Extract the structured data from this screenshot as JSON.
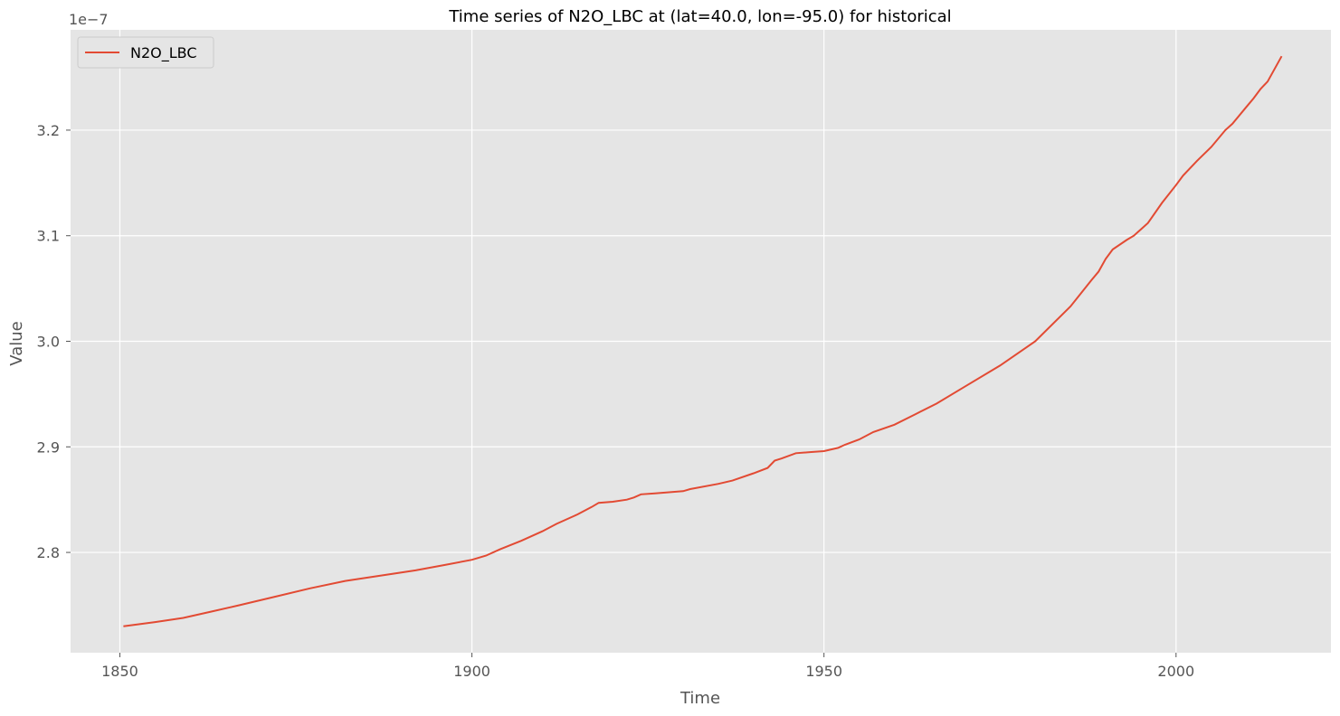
{
  "chart_data": {
    "type": "line",
    "title": "Time series of N2O_LBC at (lat=40.0, lon=-95.0) for historical",
    "xlabel": "Time",
    "ylabel": "Value",
    "y_offset_label": "1e−7",
    "xlim": [
      1843,
      2022
    ],
    "ylim": [
      2.705,
      3.295
    ],
    "x_ticks": [
      1850,
      1900,
      1950,
      2000
    ],
    "x_tick_labels": [
      "1850",
      "1900",
      "1950",
      "2000"
    ],
    "y_ticks": [
      2.8,
      2.9,
      3.0,
      3.1,
      3.2
    ],
    "y_tick_labels": [
      "2.8",
      "2.9",
      "3.0",
      "3.1",
      "3.2"
    ],
    "grid": true,
    "legend_position": "upper-left",
    "series_color": "#e24a33",
    "series": [
      {
        "name": "N2O_LBC",
        "x": [
          1850.5,
          1855,
          1859,
          1863,
          1867,
          1872,
          1877,
          1882,
          1887,
          1892,
          1896,
          1900,
          1902,
          1904,
          1907,
          1910,
          1912,
          1915,
          1917,
          1918,
          1920,
          1922,
          1923,
          1924,
          1926,
          1928,
          1930,
          1931,
          1935,
          1937,
          1940,
          1942,
          1943,
          1944,
          1946,
          1948,
          1950,
          1952,
          1953,
          1955,
          1957,
          1960,
          1963,
          1966,
          1970,
          1975,
          1980,
          1985,
          1988,
          1989,
          1990,
          1991,
          1993,
          1994,
          1995,
          1996,
          1998,
          2000,
          2001,
          2003,
          2005,
          2007,
          2008,
          2010,
          2011,
          2012,
          2013,
          2015
        ],
        "y": [
          2.73,
          2.734,
          2.738,
          2.744,
          2.75,
          2.758,
          2.766,
          2.773,
          2.778,
          2.783,
          2.788,
          2.793,
          2.797,
          2.803,
          2.811,
          2.82,
          2.827,
          2.836,
          2.843,
          2.847,
          2.848,
          2.85,
          2.852,
          2.855,
          2.856,
          2.857,
          2.858,
          2.86,
          2.865,
          2.868,
          2.875,
          2.88,
          2.887,
          2.889,
          2.894,
          2.895,
          2.896,
          2.899,
          2.902,
          2.907,
          2.914,
          2.921,
          2.931,
          2.941,
          2.957,
          2.977,
          3.0,
          3.033,
          3.058,
          3.066,
          3.078,
          3.087,
          3.096,
          3.1,
          3.106,
          3.112,
          3.131,
          3.148,
          3.157,
          3.171,
          3.184,
          3.2,
          3.206,
          3.222,
          3.23,
          3.239,
          3.246,
          3.27
        ]
      }
    ]
  }
}
